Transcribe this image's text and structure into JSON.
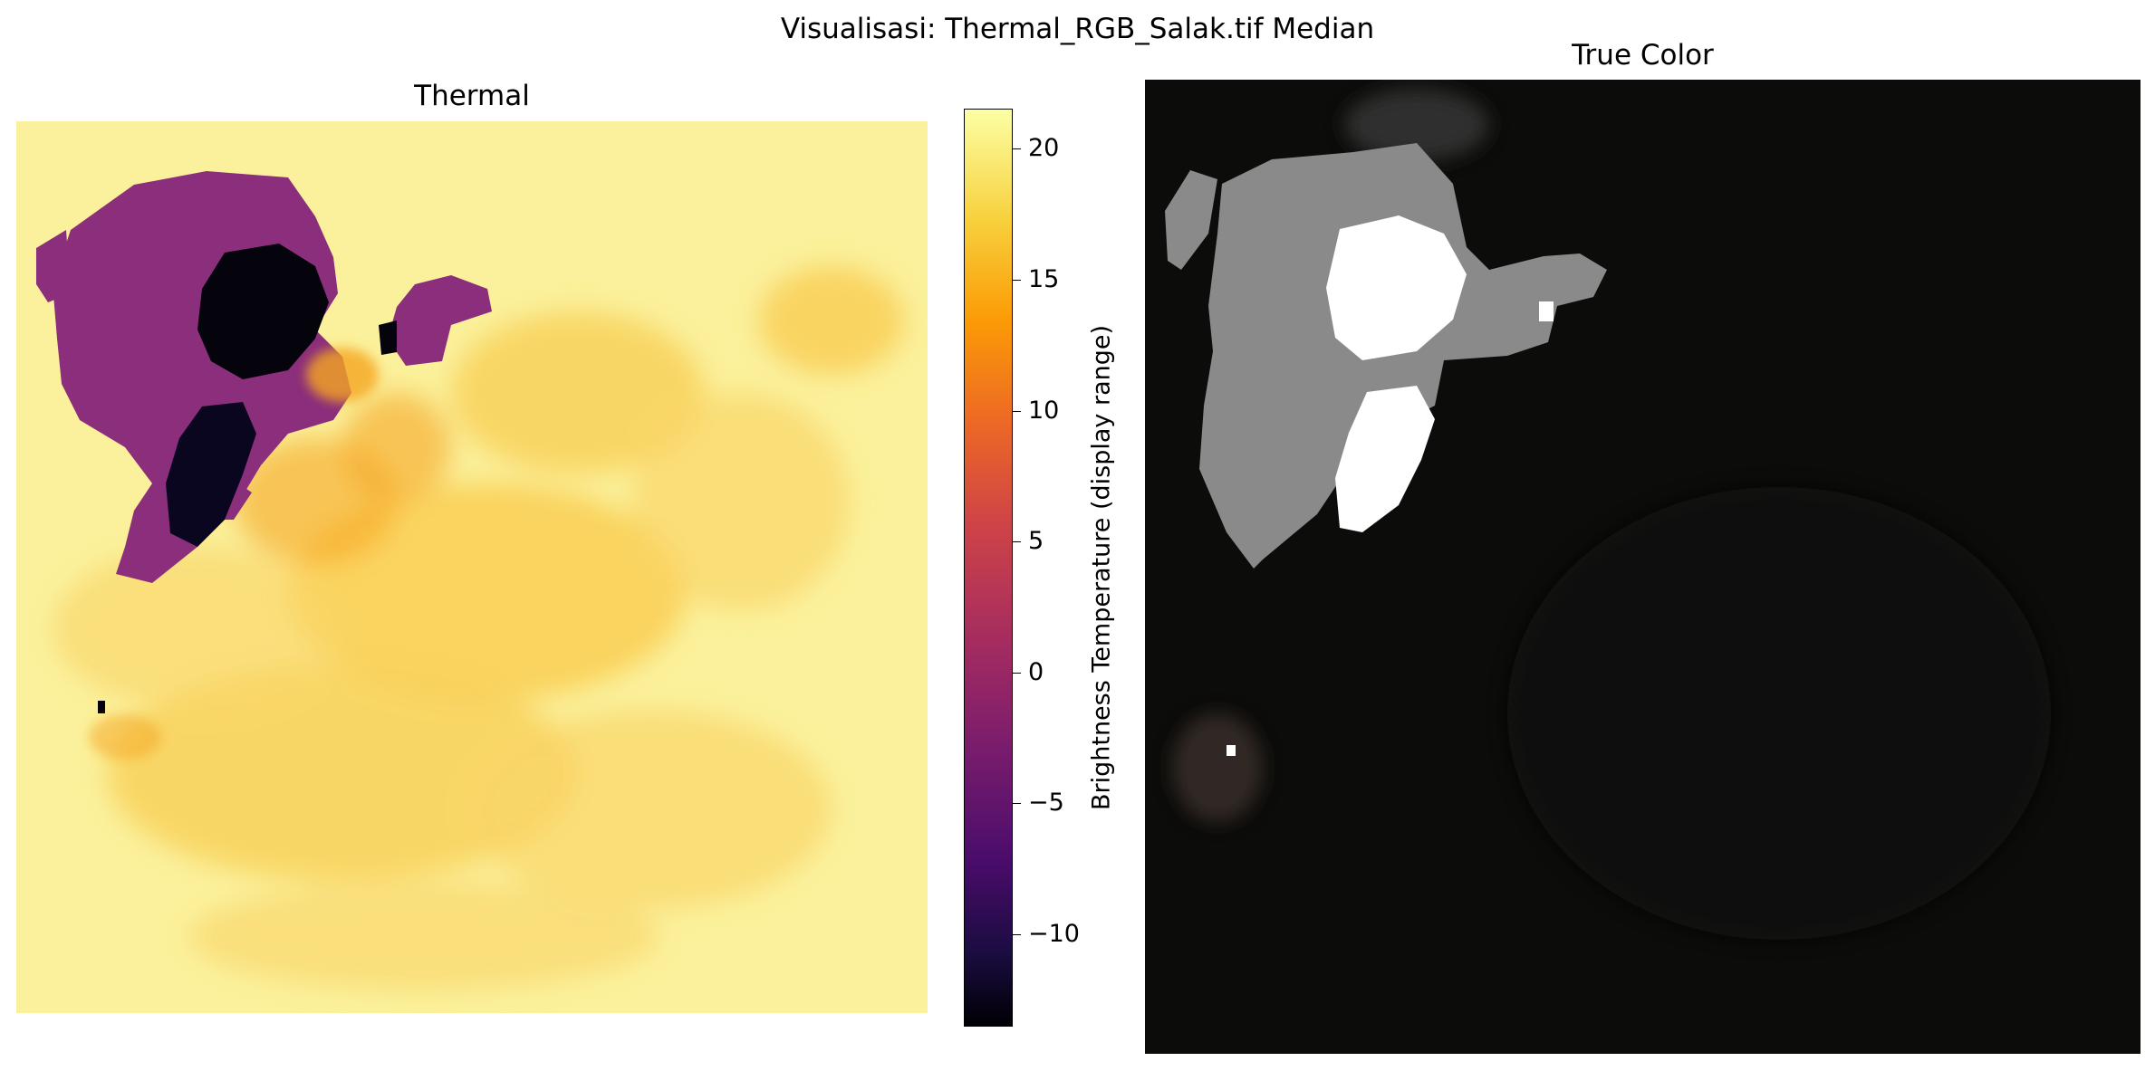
{
  "figure": {
    "suptitle": "Visualisasi: Thermal_RGB_Salak.tif Median"
  },
  "panels": {
    "thermal": {
      "title": "Thermal"
    },
    "rgb": {
      "title": "True Color"
    }
  },
  "colorbar": {
    "label": "Brightness Temperature (display range)",
    "colormap": "inferno",
    "range": [
      -13.5,
      21.5
    ],
    "ticks": [
      {
        "value": 20,
        "label": "20"
      },
      {
        "value": 15,
        "label": "15"
      },
      {
        "value": 10,
        "label": "10"
      },
      {
        "value": 5,
        "label": "5"
      },
      {
        "value": 0,
        "label": "0"
      },
      {
        "value": -5,
        "label": "−5"
      },
      {
        "value": -10,
        "label": "−10"
      }
    ]
  },
  "chart_data": [
    {
      "type": "heatmap",
      "title": "Thermal",
      "colormap": "inferno",
      "value_range": [
        -13.5,
        21.5
      ],
      "axes": "off",
      "description_regions": "cold (black/purple) zones upper-left, warm yellow-orange elsewhere"
    },
    {
      "type": "heatmap",
      "title": "True Color",
      "axes": "off"
    }
  ],
  "colors": {
    "thermal_background": "#fbf19c",
    "thermal_warm": "#f9c94a",
    "thermal_orange": "#f5a623",
    "thermal_purple": "#8b2e7c",
    "thermal_black": "#05030b",
    "rgb_background": "#0c0c0a",
    "rgb_gray": "#8a8a8a",
    "rgb_white": "#ffffff"
  }
}
